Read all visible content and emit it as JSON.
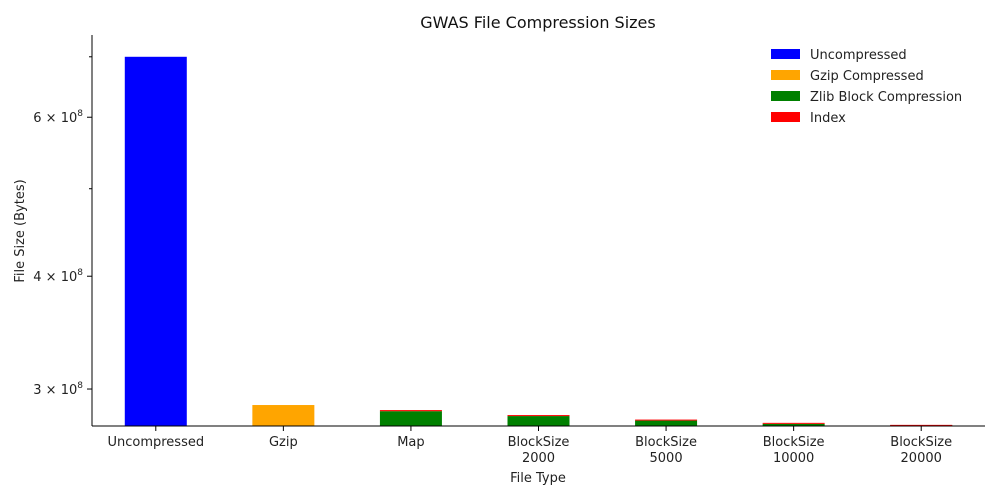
{
  "chart_data": {
    "type": "bar",
    "title": "GWAS File Compression Sizes",
    "xlabel": "File Type",
    "ylabel": "File Size (Bytes)",
    "y_scale": "log",
    "ylim": [
      273000000,
      740000000
    ],
    "y_ticks": [
      {
        "value": 300000000,
        "mantissa": "3",
        "exp": "8"
      },
      {
        "value": 400000000,
        "mantissa": "4",
        "exp": "8"
      },
      {
        "value": 600000000,
        "mantissa": "6",
        "exp": "8"
      }
    ],
    "y_minor_ticks": [
      500000000,
      700000000
    ],
    "categories": [
      [
        "Uncompressed"
      ],
      [
        "Gzip"
      ],
      [
        "Map"
      ],
      [
        "BlockSize",
        "2000"
      ],
      [
        "BlockSize",
        "5000"
      ],
      [
        "BlockSize",
        "10000"
      ],
      [
        "BlockSize",
        "20000"
      ]
    ],
    "series": [
      {
        "name": "Uncompressed",
        "color": "#0000ff",
        "values": [
          700000000,
          0,
          0,
          0,
          0,
          0,
          0
        ]
      },
      {
        "name": "Gzip Compressed",
        "color": "#ffa500",
        "values": [
          0,
          288000000,
          0,
          0,
          0,
          0,
          0
        ]
      },
      {
        "name": "Zlib Block Compression",
        "color": "#008000",
        "values": [
          0,
          0,
          283500000,
          280000000,
          276800000,
          274500000,
          273100000
        ]
      },
      {
        "name": "Index",
        "color": "#ff0000",
        "values": [
          0,
          0,
          800000,
          150000,
          60000,
          30000,
          15000
        ]
      }
    ],
    "stacked": true,
    "legend_position": "top-right",
    "grid": false
  }
}
